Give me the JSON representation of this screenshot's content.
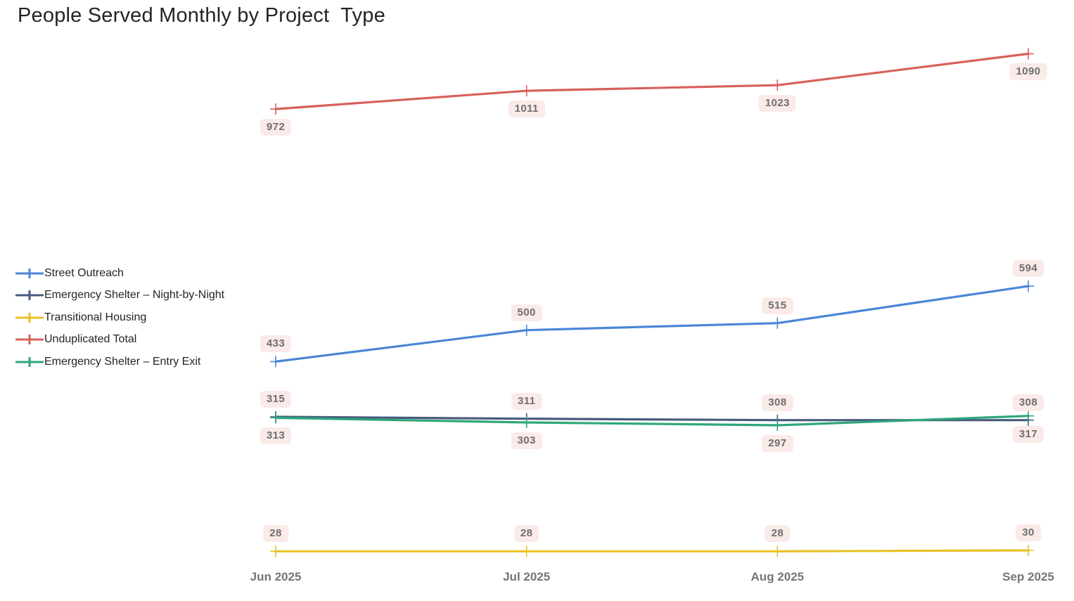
{
  "title": "People Served Monthly by Project  Type",
  "chart_data": {
    "type": "line",
    "title": "People Served Monthly by Project  Type",
    "categories": [
      "Jun 2025",
      "Jul 2025",
      "Aug 2025",
      "Sep 2025"
    ],
    "series": [
      {
        "name": "Street Outreach",
        "color": "#4A86D8",
        "values": [
          433,
          500,
          515,
          594
        ],
        "label_position": "above"
      },
      {
        "name": "Emergency Shelter – Night-by-Night",
        "color": "#485B7F",
        "values": [
          315,
          311,
          308,
          308
        ],
        "label_position": "above"
      },
      {
        "name": "Transitional Housing",
        "color": "#E8C227",
        "values": [
          28,
          28,
          28,
          30
        ],
        "label_position": "above"
      },
      {
        "name": "Unduplicated Total",
        "color": "#D8605B",
        "values": [
          972,
          1011,
          1023,
          1090
        ],
        "label_position": "below"
      },
      {
        "name": "Emergency Shelter – Entry Exit",
        "color": "#2EA67A",
        "values": [
          313,
          303,
          297,
          317
        ],
        "label_position": "below"
      }
    ],
    "xlabel": "",
    "ylabel": "",
    "ylim": [
      0,
      1120
    ],
    "grid": false,
    "legend_position": "left",
    "marker": "plus",
    "data_label_style": {
      "background": "#FAEAE8",
      "text_color": "#6F6F6F"
    },
    "axis_label_color": "#757575",
    "title_color": "#252423"
  }
}
